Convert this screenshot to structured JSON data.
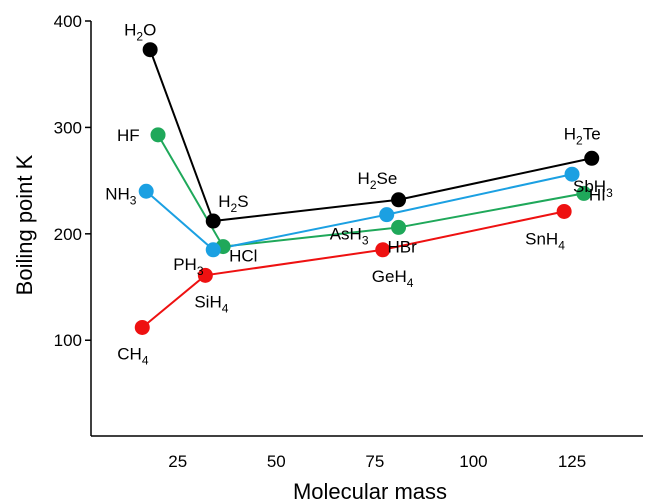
{
  "chart_data": {
    "type": "line",
    "title": "",
    "xlabel": "Molecular mass",
    "ylabel": "Boiling point K",
    "xlim": [
      3,
      143
    ],
    "ylim": [
      10,
      400
    ],
    "xticks": [
      25,
      50,
      75,
      100,
      125
    ],
    "yticks": [
      100,
      200,
      300,
      400
    ],
    "grid": false,
    "series": [
      {
        "color": "#000000",
        "points": [
          {
            "x": 18,
            "y": 373,
            "label": "H2O",
            "label_main": "H",
            "label_sub": "2",
            "label_tail": "O"
          },
          {
            "x": 34,
            "y": 212,
            "label": "H2S",
            "label_main": "H",
            "label_sub": "2",
            "label_tail": "S"
          },
          {
            "x": 81,
            "y": 232,
            "label": "H2Se",
            "label_main": "H",
            "label_sub": "2",
            "label_tail": "Se"
          },
          {
            "x": 130,
            "y": 271,
            "label": "H2Te",
            "label_main": "H",
            "label_sub": "2",
            "label_tail": "Te"
          }
        ]
      },
      {
        "color": "#1fa85a",
        "points": [
          {
            "x": 20,
            "y": 293,
            "label": "HF",
            "label_main": "HF",
            "label_sub": "",
            "label_tail": ""
          },
          {
            "x": 36.5,
            "y": 188,
            "label": "HCl",
            "label_main": "HCl",
            "label_sub": "",
            "label_tail": ""
          },
          {
            "x": 81,
            "y": 206,
            "label": "HBr",
            "label_main": "HBr",
            "label_sub": "",
            "label_tail": ""
          },
          {
            "x": 128,
            "y": 238,
            "label": "HI",
            "label_main": "HI",
            "label_sub": "",
            "label_tail": ""
          }
        ]
      },
      {
        "color": "#1ba0e2",
        "points": [
          {
            "x": 17,
            "y": 240,
            "label": "NH3",
            "label_main": "NH",
            "label_sub": "3",
            "label_tail": ""
          },
          {
            "x": 34,
            "y": 185,
            "label": "PH3",
            "label_main": "PH",
            "label_sub": "3",
            "label_tail": ""
          },
          {
            "x": 78,
            "y": 218,
            "label": "AsH3",
            "label_main": "AsH",
            "label_sub": "3",
            "label_tail": ""
          },
          {
            "x": 125,
            "y": 256,
            "label": "SbH3",
            "label_main": "SbH",
            "label_sub": "3",
            "label_tail": ""
          }
        ]
      },
      {
        "color": "#ee1111",
        "points": [
          {
            "x": 16,
            "y": 112,
            "label": "CH4",
            "label_main": "CH",
            "label_sub": "4",
            "label_tail": ""
          },
          {
            "x": 32,
            "y": 161,
            "label": "SiH4",
            "label_main": "SiH",
            "label_sub": "4",
            "label_tail": ""
          },
          {
            "x": 77,
            "y": 185,
            "label": "GeH4",
            "label_main": "GeH",
            "label_sub": "4",
            "label_tail": ""
          },
          {
            "x": 123,
            "y": 221,
            "label": "SnH4",
            "label_main": "SnH",
            "label_sub": "4",
            "label_tail": ""
          }
        ]
      }
    ]
  }
}
